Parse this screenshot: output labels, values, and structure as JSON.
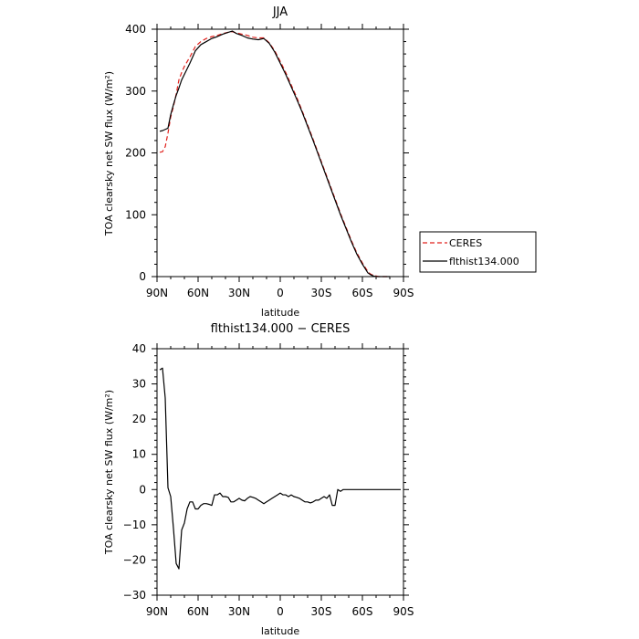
{
  "chart_data": [
    {
      "type": "line",
      "title": "JJA",
      "xlabel": "latitude",
      "ylabel": "TOA clearsky net SW flux (W/m²)",
      "xlim": [
        90,
        -90
      ],
      "ylim": [
        0,
        400
      ],
      "x_ticks": [
        90,
        60,
        30,
        0,
        -30,
        -60,
        -90
      ],
      "x_tick_labels": [
        "90N",
        "60N",
        "30N",
        "0",
        "30S",
        "60S",
        "90S"
      ],
      "y_ticks": [
        0,
        100,
        200,
        300,
        400
      ],
      "y_tick_labels": [
        "0",
        "100",
        "200",
        "300",
        "400"
      ],
      "legend": "right",
      "series": [
        {
          "name": "CERES",
          "color": "#e0201c",
          "dash": "dashed",
          "x": [
            88,
            86,
            84,
            82,
            80,
            78,
            76,
            74,
            72,
            70,
            66,
            62,
            58,
            54,
            50,
            46,
            42,
            38,
            35,
            32,
            28,
            24,
            20,
            16,
            12,
            8,
            4,
            0,
            -4,
            -8,
            -12,
            -16,
            -20,
            -24,
            -28,
            -32,
            -36,
            -40,
            -44,
            -48,
            -52,
            -56,
            -60,
            -62,
            -64,
            -66,
            -68,
            -70,
            -72,
            -74,
            -76,
            -78,
            -80
          ],
          "values": [
            201,
            202,
            210,
            232,
            258,
            275,
            295,
            318,
            330,
            340,
            355,
            372,
            380,
            385,
            388,
            390,
            393,
            395,
            396,
            394,
            392,
            390,
            387,
            386,
            386,
            378,
            365,
            348,
            330,
            310,
            290,
            268,
            245,
            222,
            198,
            174,
            150,
            126,
            102,
            80,
            58,
            38,
            22,
            15,
            8,
            4,
            2,
            1,
            0,
            0,
            0,
            0,
            0
          ]
        },
        {
          "name": "flthist134.000",
          "color": "#000000",
          "dash": "solid",
          "x": [
            88,
            86,
            84,
            82,
            80,
            78,
            76,
            74,
            72,
            70,
            66,
            62,
            58,
            54,
            50,
            46,
            42,
            38,
            35,
            32,
            28,
            24,
            20,
            16,
            12,
            8,
            4,
            0,
            -4,
            -8,
            -12,
            -16,
            -20,
            -24,
            -28,
            -32,
            -36,
            -40,
            -44,
            -48,
            -52,
            -56,
            -60,
            -62,
            -64,
            -66,
            -68,
            -70,
            -72,
            -74,
            -76,
            -78,
            -80
          ],
          "values": [
            235,
            236,
            238,
            240,
            262,
            278,
            293,
            305,
            318,
            327,
            345,
            365,
            375,
            380,
            385,
            388,
            392,
            395,
            397,
            393,
            390,
            386,
            384,
            383,
            385,
            377,
            363,
            345,
            327,
            307,
            287,
            266,
            243,
            220,
            196,
            172,
            148,
            124,
            100,
            78,
            56,
            36,
            20,
            13,
            6,
            3,
            1,
            0,
            0,
            0,
            0,
            0,
            0
          ]
        }
      ]
    },
    {
      "type": "line",
      "title": "flthist134.000 − CERES",
      "xlabel": "latitude",
      "ylabel": "TOA clearsky net SW flux (W/m²)",
      "xlim": [
        90,
        -90
      ],
      "ylim": [
        -30,
        40
      ],
      "x_ticks": [
        90,
        60,
        30,
        0,
        -30,
        -60,
        -90
      ],
      "x_tick_labels": [
        "90N",
        "60N",
        "30N",
        "0",
        "30S",
        "60S",
        "90S"
      ],
      "y_ticks": [
        -30,
        -20,
        -10,
        0,
        10,
        20,
        30,
        40
      ],
      "y_tick_labels": [
        "−30",
        "−20",
        "−10",
        "0",
        "10",
        "20",
        "30",
        "40"
      ],
      "series": [
        {
          "color": "#000000",
          "dash": "solid",
          "x": [
            88,
            86,
            84,
            82,
            80,
            78,
            76,
            74,
            72,
            70,
            68,
            66,
            64,
            62,
            60,
            58,
            56,
            54,
            52,
            50,
            48,
            46,
            44,
            42,
            40,
            38,
            36,
            34,
            32,
            30,
            28,
            26,
            24,
            22,
            20,
            18,
            16,
            14,
            12,
            10,
            8,
            6,
            4,
            2,
            0,
            -2,
            -4,
            -6,
            -8,
            -10,
            -12,
            -14,
            -16,
            -18,
            -20,
            -22,
            -24,
            -26,
            -28,
            -30,
            -32,
            -34,
            -36,
            -38,
            -40,
            -42,
            -44,
            -46,
            -48,
            -50,
            -52,
            -54,
            -56,
            -58,
            -60,
            -62,
            -64,
            -66,
            -68,
            -70,
            -72,
            -74,
            -76,
            -78,
            -80,
            -82,
            -84,
            -86,
            -88
          ],
          "values": [
            34,
            34.5,
            26,
            0.5,
            -2,
            -11,
            -21,
            -22.5,
            -11.5,
            -9.5,
            -5.5,
            -3.5,
            -3.5,
            -5.5,
            -5.5,
            -4.5,
            -4,
            -4,
            -4.2,
            -4.5,
            -1.5,
            -1.5,
            -1,
            -2,
            -2,
            -2.2,
            -3.5,
            -3.5,
            -3,
            -2.5,
            -3,
            -3.2,
            -2.5,
            -2,
            -2.2,
            -2.5,
            -3,
            -3.5,
            -4,
            -3.5,
            -3,
            -2.5,
            -2,
            -1.5,
            -1,
            -1.5,
            -1.5,
            -2,
            -1.5,
            -2,
            -2.2,
            -2.5,
            -3,
            -3.5,
            -3.5,
            -3.8,
            -3.5,
            -3,
            -3,
            -2.5,
            -2,
            -2.5,
            -1.5,
            -4.5,
            -4.5,
            0,
            -0.5,
            0,
            0,
            0,
            0,
            0,
            0,
            0,
            0,
            0,
            0,
            0,
            0,
            0,
            0,
            0,
            0,
            0,
            0,
            0,
            0,
            0,
            0
          ]
        }
      ]
    }
  ]
}
